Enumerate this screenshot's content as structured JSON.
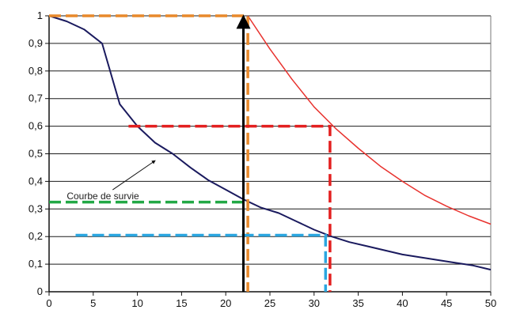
{
  "chart_data": {
    "type": "line",
    "title": "",
    "xlabel": "",
    "ylabel": "",
    "xlim": [
      0,
      50
    ],
    "ylim": [
      0,
      1
    ],
    "grid": "horizontal",
    "legend": "none",
    "x_ticks": [
      0,
      5,
      10,
      15,
      20,
      25,
      30,
      35,
      40,
      45,
      50
    ],
    "x_tick_labels": [
      "0",
      "5",
      "10",
      "15",
      "20",
      "25",
      "30",
      "35",
      "40",
      "45",
      "50"
    ],
    "y_ticks": [
      0,
      0.1,
      0.2,
      0.3,
      0.4,
      0.5,
      0.6,
      0.7,
      0.8,
      0.9,
      1
    ],
    "y_tick_labels": [
      "0",
      "0,1",
      "0,2",
      "0,3",
      "0,4",
      "0,5",
      "0,6",
      "0,7",
      "0,8",
      "0,9",
      "1"
    ],
    "series": [
      {
        "color": "#1a1a5e",
        "x": [
          0,
          2,
          4,
          6,
          8,
          10,
          12,
          14,
          16,
          18,
          20,
          22,
          24,
          26,
          28,
          30,
          32,
          34,
          36,
          38,
          40,
          42,
          44,
          46,
          48,
          50
        ],
        "y": [
          1.0,
          0.98,
          0.95,
          0.9,
          0.68,
          0.6,
          0.54,
          0.5,
          0.45,
          0.405,
          0.37,
          0.335,
          0.305,
          0.285,
          0.255,
          0.225,
          0.2,
          0.18,
          0.165,
          0.15,
          0.135,
          0.125,
          0.115,
          0.105,
          0.095,
          0.08
        ]
      },
      {
        "color": "#e8322e",
        "x": [
          22.5,
          25,
          27.5,
          30,
          32.5,
          35,
          37.5,
          40,
          42.5,
          45,
          47.5,
          50
        ],
        "y": [
          1.0,
          0.88,
          0.77,
          0.67,
          0.59,
          0.52,
          0.455,
          0.4,
          0.35,
          0.31,
          0.275,
          0.245
        ]
      }
    ],
    "guides": [
      {
        "color": "#e8892b",
        "points": [
          [
            0,
            1
          ],
          [
            22.5,
            1
          ],
          [
            22.5,
            0
          ]
        ]
      },
      {
        "color": "#e32020",
        "points": [
          [
            9,
            0.6
          ],
          [
            31.8,
            0.6
          ],
          [
            31.8,
            0
          ]
        ]
      },
      {
        "color": "#22a845",
        "points": [
          [
            0,
            0.325
          ],
          [
            22.5,
            0.325
          ]
        ]
      },
      {
        "color": "#2aa6e0",
        "points": [
          [
            3,
            0.205
          ],
          [
            31.3,
            0.205
          ],
          [
            31.3,
            0
          ]
        ]
      }
    ],
    "arrow": {
      "color": "#000000",
      "from": [
        22,
        0
      ],
      "to": [
        22,
        1
      ]
    },
    "annotation": {
      "text": "Courbe de survie",
      "x": 2,
      "y": 0.335,
      "arrow_to": [
        12,
        0.475
      ]
    }
  }
}
